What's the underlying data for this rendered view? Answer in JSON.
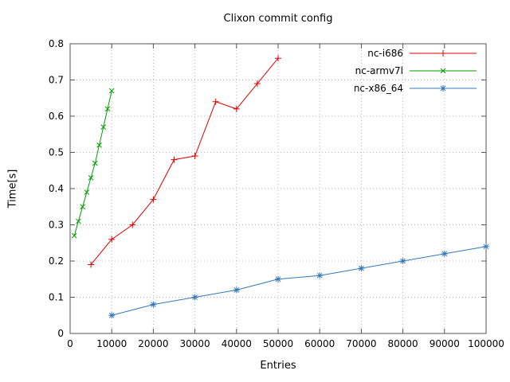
{
  "chart_data": {
    "type": "line",
    "title": "Clixon commit config",
    "xlabel": "Entries",
    "ylabel": "Time[s]",
    "xlim": [
      0,
      100000
    ],
    "ylim": [
      0,
      0.8
    ],
    "xticks": [
      "0",
      "10000",
      "20000",
      "30000",
      "40000",
      "50000",
      "60000",
      "70000",
      "80000",
      "90000",
      "100000"
    ],
    "yticks": [
      "0",
      "0.1",
      "0.2",
      "0.3",
      "0.4",
      "0.5",
      "0.6",
      "0.7",
      "0.8"
    ],
    "grid": true,
    "legend_position": "top-right",
    "series": [
      {
        "name": "nc-i686",
        "color": "#dd0000",
        "marker": "plus",
        "x": [
          5000,
          10000,
          15000,
          20000,
          25000,
          30000,
          35000,
          40000,
          45000,
          50000
        ],
        "y": [
          0.19,
          0.26,
          0.3,
          0.37,
          0.48,
          0.49,
          0.64,
          0.62,
          0.69,
          0.76
        ]
      },
      {
        "name": "nc-armv7l",
        "color": "#009e00",
        "marker": "cross",
        "x": [
          1000,
          2000,
          3000,
          4000,
          5000,
          6000,
          7000,
          8000,
          9000,
          10000
        ],
        "y": [
          0.27,
          0.31,
          0.35,
          0.39,
          0.43,
          0.47,
          0.52,
          0.57,
          0.62,
          0.67
        ]
      },
      {
        "name": "nc-x86_64",
        "color": "#3377bb",
        "marker": "asterisk",
        "x": [
          10000,
          20000,
          30000,
          40000,
          50000,
          60000,
          70000,
          80000,
          90000,
          100000
        ],
        "y": [
          0.05,
          0.08,
          0.1,
          0.12,
          0.15,
          0.16,
          0.18,
          0.2,
          0.22,
          0.24
        ]
      }
    ]
  }
}
